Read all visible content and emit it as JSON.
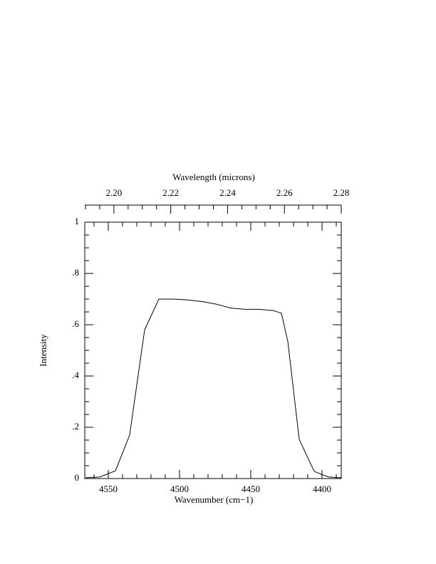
{
  "chart_data": {
    "type": "line",
    "top_axis_label": "Wavelength (microns)",
    "x_label": "Wavenumber (cm−1)",
    "y_label": "Intensity",
    "x": [
      4566,
      4556,
      4545,
      4535,
      4524.5,
      4514.5,
      4504.5,
      4494.5,
      4483.5,
      4474,
      4464,
      4454,
      4444,
      4434,
      4428.5,
      4424,
      4416,
      4405.5,
      4395.5,
      4386.5
    ],
    "values": [
      0.003,
      0.006,
      0.03,
      0.17,
      0.58,
      0.7,
      0.7,
      0.697,
      0.69,
      0.68,
      0.665,
      0.66,
      0.66,
      0.655,
      0.645,
      0.535,
      0.153,
      0.028,
      0.006,
      0.003
    ],
    "color": "#000000",
    "xlim": [
      4566.5,
      4386.5
    ],
    "xticks": [
      4550,
      4500,
      4450,
      4400
    ],
    "ylim": [
      0,
      1
    ],
    "yticks": [
      0,
      {
        "value": 0.2,
        "label": ".2"
      },
      {
        "value": 0.4,
        "label": ".4"
      },
      {
        "value": 0.6,
        "label": ".6"
      },
      {
        "value": 0.8,
        "label": ".8"
      },
      1
    ],
    "top_xlim": [
      2.18975,
      2.28
    ],
    "top_xticks": [
      {
        "value": 2.2,
        "label": "2.20"
      },
      {
        "value": 2.22,
        "label": "2.22"
      },
      {
        "value": 2.24,
        "label": "2.24"
      },
      {
        "value": 2.26,
        "label": "2.26"
      },
      {
        "value": 2.28,
        "label": "2.28"
      }
    ]
  }
}
